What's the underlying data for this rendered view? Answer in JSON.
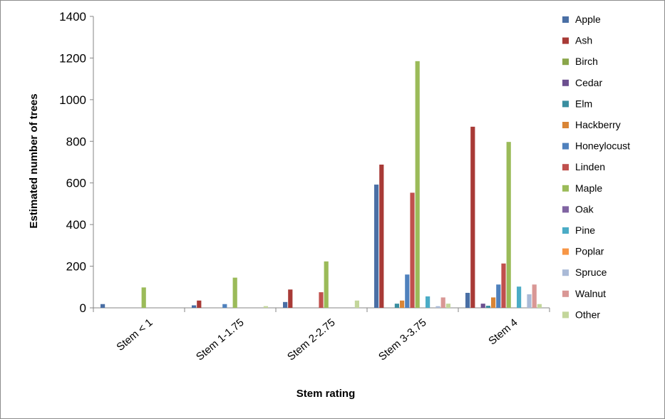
{
  "chart_data": {
    "type": "bar",
    "title": "",
    "xlabel": "Stem rating",
    "ylabel": "Estimated number of trees",
    "ylim": [
      0,
      1400
    ],
    "yticks": [
      0,
      200,
      400,
      600,
      800,
      1000,
      1200,
      1400
    ],
    "grid": false,
    "legend_position": "right",
    "categories": [
      "Stem < 1",
      "Stem 1-1.75",
      "Stem 2-2.75",
      "Stem 3-3.75",
      "Stem 4"
    ],
    "series": [
      {
        "name": "Apple",
        "color": "#4a6fa5",
        "values": [
          18,
          12,
          28,
          592,
          72
        ]
      },
      {
        "name": "Ash",
        "color": "#a83a36",
        "values": [
          0,
          35,
          88,
          688,
          870
        ]
      },
      {
        "name": "Birch",
        "color": "#8aa64a",
        "values": [
          0,
          0,
          0,
          0,
          0
        ]
      },
      {
        "name": "Cedar",
        "color": "#6c4f8f",
        "values": [
          0,
          0,
          0,
          0,
          20
        ]
      },
      {
        "name": "Elm",
        "color": "#3a8ea0",
        "values": [
          0,
          0,
          0,
          20,
          10
        ]
      },
      {
        "name": "Hackberry",
        "color": "#d98536",
        "values": [
          0,
          0,
          0,
          35,
          50
        ]
      },
      {
        "name": "Honeylocust",
        "color": "#4f81bd",
        "values": [
          0,
          18,
          0,
          160,
          112
        ]
      },
      {
        "name": "Linden",
        "color": "#c0504d",
        "values": [
          0,
          0,
          75,
          553,
          213
        ]
      },
      {
        "name": "Maple",
        "color": "#9bbb59",
        "values": [
          98,
          145,
          223,
          1185,
          797
        ]
      },
      {
        "name": "Oak",
        "color": "#8064a2",
        "values": [
          0,
          0,
          0,
          0,
          0
        ]
      },
      {
        "name": "Pine",
        "color": "#4bacc6",
        "values": [
          0,
          0,
          0,
          55,
          102
        ]
      },
      {
        "name": "Poplar",
        "color": "#f79646",
        "values": [
          0,
          0,
          0,
          0,
          0
        ]
      },
      {
        "name": "Spruce",
        "color": "#aabad7",
        "values": [
          0,
          0,
          0,
          8,
          65
        ]
      },
      {
        "name": "Walnut",
        "color": "#d99795",
        "values": [
          0,
          0,
          0,
          50,
          112
        ]
      },
      {
        "name": "Other",
        "color": "#c3d69b",
        "values": [
          0,
          8,
          35,
          20,
          18
        ]
      }
    ]
  }
}
